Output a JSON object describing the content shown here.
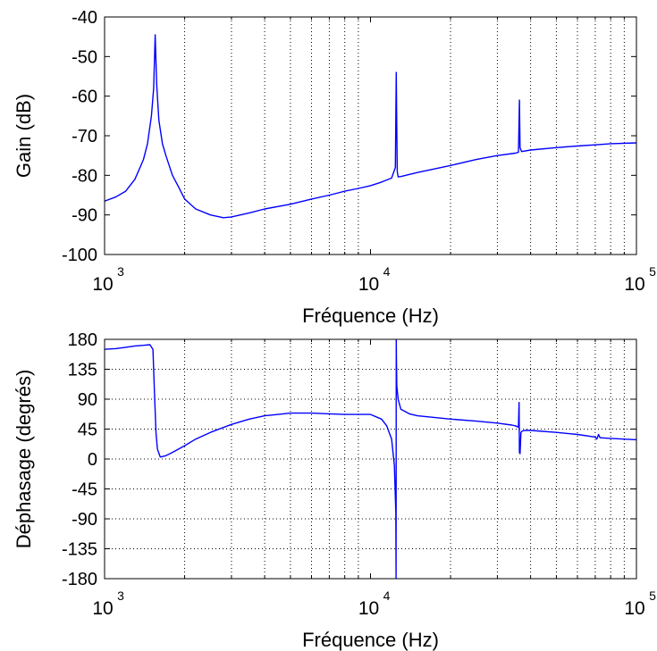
{
  "chart_data": [
    {
      "type": "line",
      "xlabel": "Fréquence (Hz)",
      "ylabel": "Gain (dB)",
      "xscale": "log",
      "xlim": [
        1000,
        100000
      ],
      "ylim": [
        -100,
        -40
      ],
      "x_ticks": [
        {
          "base": "10",
          "exp": "3"
        },
        {
          "base": "10",
          "exp": "4"
        },
        {
          "base": "10",
          "exp": "5"
        }
      ],
      "y_ticks": [
        "-40",
        "-50",
        "-60",
        "-70",
        "-80",
        "-90",
        "-100"
      ],
      "grid": "x-minor-dotted",
      "line_color": "#0000ff",
      "series": [
        {
          "x": [
            1000,
            1100,
            1200,
            1300,
            1400,
            1450,
            1500,
            1530,
            1550,
            1570,
            1600,
            1650,
            1700,
            1800,
            1900,
            2000,
            2200,
            2500,
            2800,
            3000,
            3500,
            4000,
            5000,
            6000,
            7000,
            8000,
            9000,
            10000,
            11000,
            12000,
            12400,
            12500,
            12550,
            12600,
            12700,
            13000,
            15000,
            20000,
            25000,
            30000,
            35000,
            36000,
            36300,
            36500,
            37000,
            40000,
            50000,
            60000,
            70000,
            80000,
            100000
          ],
          "y": [
            -86.5,
            -85.5,
            -84,
            -81,
            -76,
            -72,
            -65,
            -58,
            -44.5,
            -57,
            -66,
            -72,
            -75,
            -80,
            -83,
            -86,
            -88.5,
            -90,
            -90.7,
            -90.5,
            -89.5,
            -88.5,
            -87.3,
            -86,
            -85,
            -84,
            -83.3,
            -82.6,
            -81.7,
            -80.7,
            -78,
            -54,
            -66,
            -79,
            -80.4,
            -80.3,
            -79.3,
            -77.5,
            -76,
            -75,
            -74.4,
            -74.2,
            -61,
            -73,
            -74,
            -73.6,
            -73,
            -72.6,
            -72.3,
            -72,
            -71.8
          ]
        }
      ]
    },
    {
      "type": "line",
      "xlabel": "Fréquence (Hz)",
      "ylabel": "Déphasage (degrés)",
      "xscale": "log",
      "xlim": [
        1000,
        100000
      ],
      "ylim": [
        -180,
        180
      ],
      "x_ticks": [
        {
          "base": "10",
          "exp": "3"
        },
        {
          "base": "10",
          "exp": "4"
        },
        {
          "base": "10",
          "exp": "5"
        }
      ],
      "y_ticks": [
        "180",
        "135",
        "90",
        "45",
        "0",
        "-45",
        "-90",
        "-135",
        "-180"
      ],
      "grid": "x-minor-dotted-y-dotted",
      "line_color": "#0000ff",
      "series": [
        {
          "x": [
            1000,
            1100,
            1200,
            1300,
            1400,
            1480,
            1520,
            1540,
            1560,
            1580,
            1620,
            1700,
            1800,
            2000,
            2200,
            2500,
            3000,
            3500,
            4000,
            4500,
            5000,
            6000,
            7000,
            8000,
            10000,
            11000,
            11500,
            12000,
            12300,
            12450,
            12480,
            12500,
            12520,
            12560,
            12700,
            13000,
            14000,
            15000,
            20000,
            25000,
            30000,
            34000,
            35000,
            36000,
            36200,
            36300,
            36500,
            36800,
            37200,
            38000,
            40000,
            50000,
            60000,
            70000,
            71000,
            72000,
            73000,
            80000,
            100000
          ],
          "y": [
            165,
            166,
            168,
            170,
            171,
            172,
            165,
            100,
            40,
            15,
            3,
            5,
            10,
            20,
            30,
            40,
            52,
            60,
            65,
            67,
            69,
            69,
            68,
            67,
            67,
            60,
            50,
            30,
            -10,
            -80,
            -180,
            180,
            150,
            110,
            90,
            75,
            68,
            65,
            60,
            57,
            54,
            51,
            50,
            48,
            85,
            10,
            8,
            40,
            42,
            43,
            43,
            40,
            37,
            33,
            30,
            37,
            32,
            31,
            29
          ]
        }
      ]
    }
  ]
}
